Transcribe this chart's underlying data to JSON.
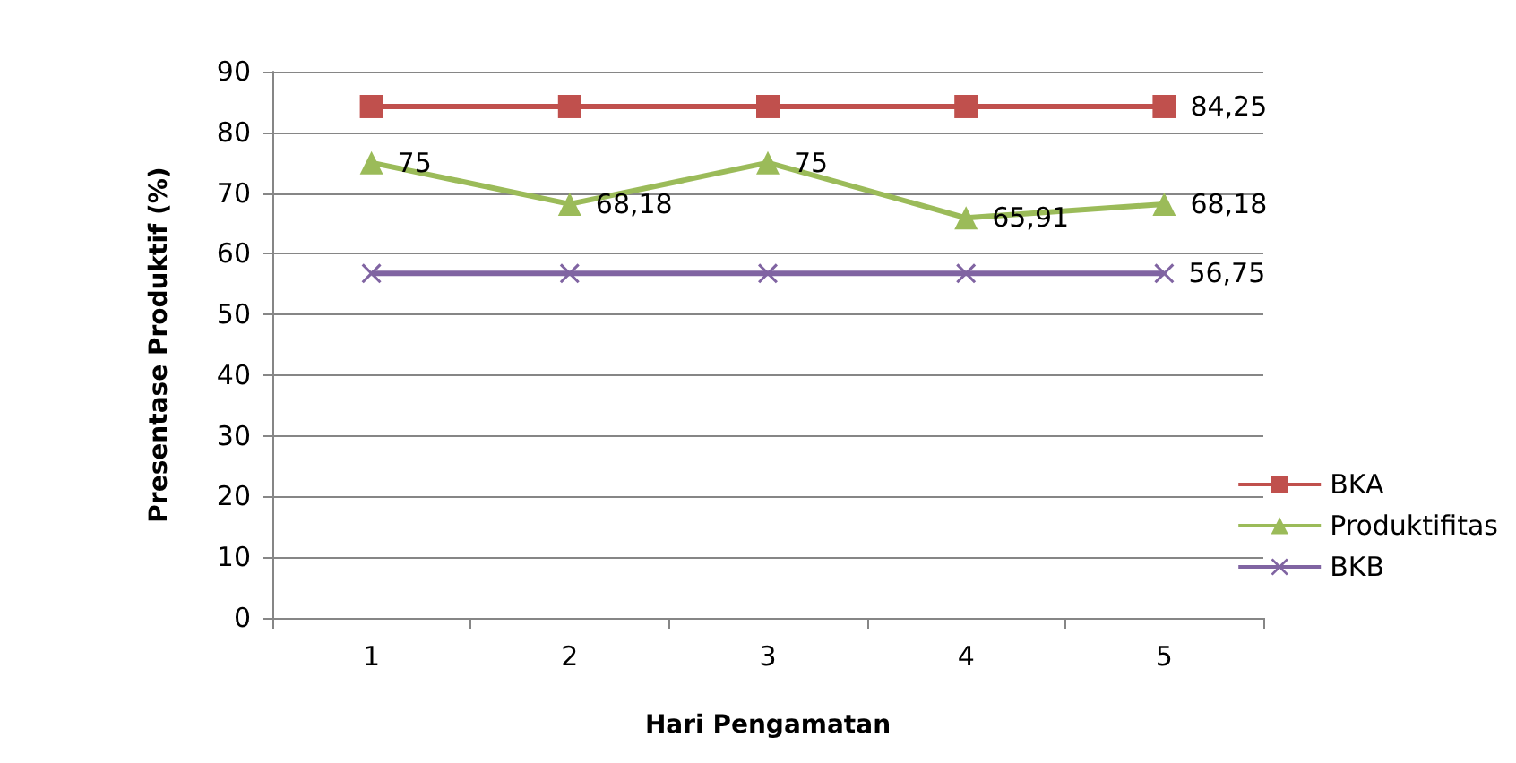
{
  "chart_data": {
    "type": "line",
    "xlabel": "Hari Pengamatan",
    "ylabel": "Presentase Produktif (%)",
    "categories": [
      "1",
      "2",
      "3",
      "4",
      "5"
    ],
    "series": [
      {
        "name": "BKA",
        "color": "#c0504d",
        "marker": "square",
        "values": [
          84.25,
          84.25,
          84.25,
          84.25,
          84.25
        ],
        "value_labels": [
          null,
          null,
          null,
          null,
          "84,25"
        ]
      },
      {
        "name": "Produktifitas",
        "color": "#9bbb59",
        "marker": "triangle",
        "values": [
          75,
          68.18,
          75,
          65.91,
          68.18
        ],
        "value_labels": [
          "75",
          "68,18",
          "75",
          "65,91",
          "68,18"
        ]
      },
      {
        "name": "BKB",
        "color": "#8064a2",
        "marker": "cross",
        "values": [
          56.75,
          56.75,
          56.75,
          56.75,
          56.75
        ],
        "value_labels": [
          null,
          null,
          null,
          null,
          "56,75"
        ]
      }
    ],
    "ylim": [
      0,
      90
    ],
    "yticks": [
      0,
      10,
      20,
      30,
      40,
      50,
      60,
      70,
      80,
      90
    ],
    "grid": "y",
    "legend": "right"
  }
}
